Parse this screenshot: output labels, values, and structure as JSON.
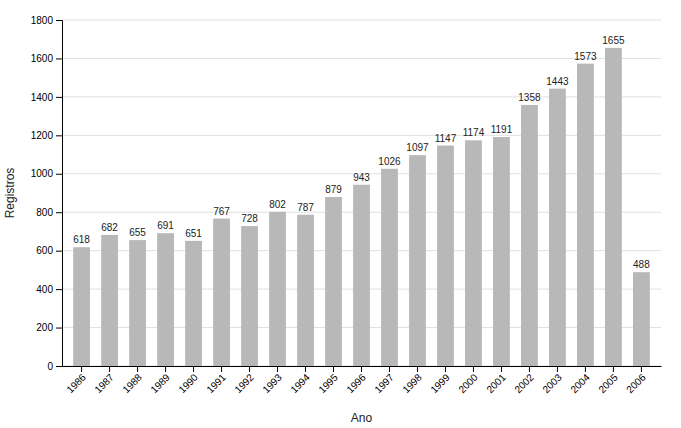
{
  "chart_data": {
    "type": "bar",
    "categories": [
      "1986",
      "1987",
      "1988",
      "1989",
      "1990",
      "1991",
      "1992",
      "1993",
      "1994",
      "1995",
      "1996",
      "1997",
      "1998",
      "1999",
      "2000",
      "2001",
      "2002",
      "2003",
      "2004",
      "2005",
      "2006"
    ],
    "values": [
      618,
      682,
      655,
      691,
      651,
      767,
      728,
      802,
      787,
      879,
      943,
      1026,
      1097,
      1147,
      1174,
      1191,
      1358,
      1443,
      1573,
      1655,
      488
    ],
    "color": "#b8b8b8",
    "xlabel": "Ano",
    "ylabel": "Registros",
    "ylim": [
      0,
      1800
    ],
    "yticks": [
      0,
      200,
      400,
      600,
      800,
      1000,
      1200,
      1400,
      1600,
      1800
    ],
    "grid": true,
    "data_labels": true
  }
}
